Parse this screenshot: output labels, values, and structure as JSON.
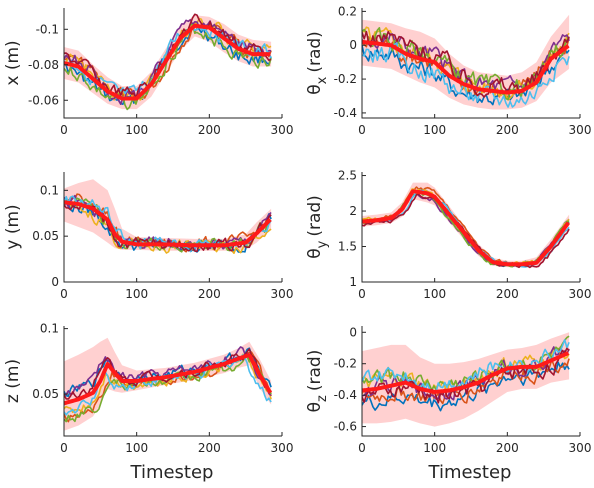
{
  "figure": {
    "xlabel": "Timestep"
  },
  "palette": {
    "mean": "#ff1a1a",
    "band": "#ffc8c8",
    "trials": [
      "#0072bd",
      "#d95319",
      "#edb120",
      "#7e2f8e",
      "#77ac30",
      "#4dbeee",
      "#a2142f"
    ]
  },
  "chart_data": [
    {
      "id": "x",
      "type": "line",
      "ylabel": "x (m)",
      "xlim": [
        0,
        300
      ],
      "ylim": [
        -0.112,
        -0.05
      ],
      "reversed_y": true,
      "xticks": [
        0,
        100,
        200,
        300
      ],
      "xtick_labels": [
        "0",
        "100",
        "200",
        "300"
      ],
      "yticks": [
        -0.06,
        -0.08,
        -0.1
      ],
      "ytick_labels": [
        "-0.06",
        "-0.08",
        "-0.1"
      ],
      "mean": {
        "x": [
          0,
          20,
          40,
          60,
          80,
          100,
          120,
          140,
          160,
          180,
          200,
          220,
          240,
          260,
          285
        ],
        "y": [
          -0.081,
          -0.079,
          -0.072,
          -0.065,
          -0.061,
          -0.061,
          -0.069,
          -0.082,
          -0.095,
          -0.102,
          -0.101,
          -0.095,
          -0.089,
          -0.086,
          -0.086
        ]
      },
      "band": {
        "upper": [
          -0.072,
          -0.07,
          -0.064,
          -0.058,
          -0.055,
          -0.055,
          -0.062,
          -0.075,
          -0.088,
          -0.096,
          -0.093,
          -0.087,
          -0.082,
          -0.079,
          -0.079
        ],
        "lower": [
          -0.09,
          -0.088,
          -0.08,
          -0.073,
          -0.068,
          -0.068,
          -0.076,
          -0.089,
          -0.102,
          -0.108,
          -0.107,
          -0.103,
          -0.097,
          -0.094,
          -0.093
        ]
      },
      "noise": 0.0035
    },
    {
      "id": "thx",
      "type": "line",
      "ylabel": "θ",
      "ylabel_sub": "x",
      "ylabel_unit": "(rad)",
      "xlim": [
        0,
        300
      ],
      "ylim": [
        -0.43,
        0.22
      ],
      "xticks": [
        0,
        100,
        200,
        300
      ],
      "xtick_labels": [
        "0",
        "100",
        "200",
        "300"
      ],
      "yticks": [
        0.2,
        0,
        -0.2,
        -0.4
      ],
      "ytick_labels": [
        "0.2",
        "0",
        "-0.2",
        "-0.4"
      ],
      "mean": {
        "x": [
          0,
          20,
          40,
          60,
          80,
          100,
          120,
          140,
          160,
          180,
          200,
          220,
          240,
          260,
          285
        ],
        "y": [
          0.02,
          0.01,
          0.0,
          -0.05,
          -0.08,
          -0.1,
          -0.18,
          -0.23,
          -0.26,
          -0.27,
          -0.28,
          -0.27,
          -0.22,
          -0.08,
          0.0
        ]
      },
      "band": {
        "upper": [
          0.15,
          0.14,
          0.13,
          0.1,
          0.08,
          0.04,
          -0.05,
          -0.12,
          -0.16,
          -0.17,
          -0.18,
          -0.16,
          -0.1,
          0.05,
          0.18
        ],
        "lower": [
          -0.12,
          -0.13,
          -0.14,
          -0.18,
          -0.22,
          -0.25,
          -0.31,
          -0.35,
          -0.37,
          -0.38,
          -0.38,
          -0.37,
          -0.33,
          -0.22,
          -0.14
        ]
      },
      "noise": 0.05
    },
    {
      "id": "y",
      "type": "line",
      "ylabel": "y (m)",
      "xlim": [
        0,
        300
      ],
      "ylim": [
        0,
        0.12
      ],
      "xticks": [
        0,
        100,
        200,
        300
      ],
      "xtick_labels": [
        "0",
        "100",
        "200",
        "300"
      ],
      "yticks": [
        0.1,
        0.05,
        0
      ],
      "ytick_labels": [
        "0.1",
        "0.05",
        "0"
      ],
      "mean": {
        "x": [
          0,
          20,
          40,
          60,
          70,
          80,
          100,
          140,
          180,
          220,
          250,
          265,
          285
        ],
        "y": [
          0.087,
          0.085,
          0.08,
          0.068,
          0.052,
          0.044,
          0.041,
          0.041,
          0.04,
          0.04,
          0.043,
          0.053,
          0.069
        ]
      },
      "band": {
        "upper": [
          0.102,
          0.108,
          0.112,
          0.1,
          0.08,
          0.058,
          0.049,
          0.048,
          0.047,
          0.047,
          0.052,
          0.065,
          0.08
        ],
        "lower": [
          0.066,
          0.06,
          0.054,
          0.043,
          0.037,
          0.035,
          0.035,
          0.034,
          0.034,
          0.034,
          0.035,
          0.043,
          0.058
        ]
      },
      "noise": 0.006
    },
    {
      "id": "thy",
      "type": "line",
      "ylabel": "θ",
      "ylabel_sub": "y",
      "ylabel_unit": "(rad)",
      "xlim": [
        0,
        300
      ],
      "ylim": [
        1,
        2.55
      ],
      "xticks": [
        0,
        100,
        200,
        300
      ],
      "xtick_labels": [
        "0",
        "100",
        "200",
        "300"
      ],
      "yticks": [
        2.5,
        2,
        1.5,
        1
      ],
      "ytick_labels": [
        "2.5",
        "2",
        "1.5",
        "1"
      ],
      "mean": {
        "x": [
          0,
          20,
          40,
          55,
          70,
          90,
          100,
          120,
          140,
          160,
          180,
          200,
          220,
          240,
          260,
          285
        ],
        "y": [
          1.85,
          1.87,
          1.9,
          2.02,
          2.28,
          2.25,
          2.2,
          1.95,
          1.7,
          1.45,
          1.28,
          1.25,
          1.25,
          1.27,
          1.5,
          1.85
        ]
      },
      "band": {
        "upper": [
          1.93,
          1.95,
          1.98,
          2.12,
          2.4,
          2.4,
          2.33,
          2.07,
          1.8,
          1.54,
          1.34,
          1.3,
          1.3,
          1.35,
          1.6,
          1.95
        ],
        "lower": [
          1.78,
          1.8,
          1.83,
          1.92,
          2.17,
          2.12,
          2.08,
          1.84,
          1.6,
          1.37,
          1.23,
          1.21,
          1.21,
          1.2,
          1.4,
          1.76
        ]
      },
      "noise": 0.025
    },
    {
      "id": "z",
      "type": "line",
      "ylabel": "z (m)",
      "xlim": [
        0,
        300
      ],
      "ylim": [
        0.018,
        0.102
      ],
      "xticks": [
        0,
        100,
        200,
        300
      ],
      "xtick_labels": [
        "0",
        "100",
        "200",
        "300"
      ],
      "yticks": [
        0.1,
        0.05
      ],
      "ytick_labels": [
        "0.1",
        "0.05"
      ],
      "mean": {
        "x": [
          0,
          20,
          40,
          50,
          60,
          70,
          80,
          100,
          140,
          180,
          220,
          240,
          255,
          270,
          285
        ],
        "y": [
          0.043,
          0.046,
          0.051,
          0.06,
          0.073,
          0.066,
          0.06,
          0.06,
          0.063,
          0.067,
          0.073,
          0.077,
          0.08,
          0.064,
          0.05
        ]
      },
      "band": {
        "upper": [
          0.075,
          0.08,
          0.086,
          0.09,
          0.093,
          0.082,
          0.072,
          0.068,
          0.07,
          0.074,
          0.08,
          0.085,
          0.09,
          0.076,
          0.06
        ],
        "lower": [
          0.022,
          0.026,
          0.033,
          0.042,
          0.054,
          0.052,
          0.051,
          0.053,
          0.057,
          0.061,
          0.066,
          0.07,
          0.072,
          0.054,
          0.042
        ]
      },
      "noise": 0.0035
    },
    {
      "id": "thz",
      "type": "line",
      "ylabel": "θ",
      "ylabel_sub": "z",
      "ylabel_unit": "(rad)",
      "xlim": [
        0,
        300
      ],
      "ylim": [
        -0.66,
        0.04
      ],
      "xticks": [
        0,
        100,
        200,
        300
      ],
      "xtick_labels": [
        "0",
        "100",
        "200",
        "300"
      ],
      "yticks": [
        0,
        -0.2,
        -0.4,
        -0.6
      ],
      "ytick_labels": [
        "0",
        "-0.2",
        "-0.4",
        "-0.6"
      ],
      "mean": {
        "x": [
          0,
          20,
          40,
          60,
          80,
          100,
          120,
          140,
          160,
          180,
          200,
          220,
          240,
          260,
          285
        ],
        "y": [
          -0.37,
          -0.36,
          -0.34,
          -0.32,
          -0.36,
          -0.38,
          -0.37,
          -0.35,
          -0.32,
          -0.27,
          -0.23,
          -0.22,
          -0.22,
          -0.18,
          -0.13
        ]
      },
      "band": {
        "upper": [
          -0.12,
          -0.1,
          -0.08,
          -0.08,
          -0.16,
          -0.2,
          -0.2,
          -0.19,
          -0.17,
          -0.14,
          -0.11,
          -0.1,
          -0.08,
          -0.04,
          0.0
        ],
        "lower": [
          -0.58,
          -0.58,
          -0.57,
          -0.55,
          -0.58,
          -0.6,
          -0.58,
          -0.55,
          -0.5,
          -0.44,
          -0.38,
          -0.36,
          -0.36,
          -0.32,
          -0.3
        ]
      },
      "noise": 0.045
    }
  ]
}
